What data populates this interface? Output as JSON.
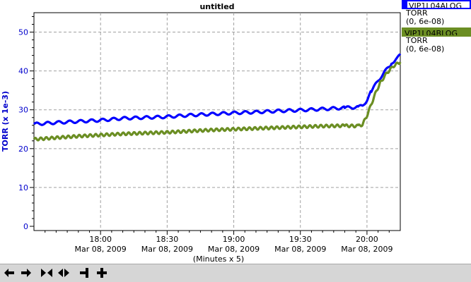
{
  "chart_data": {
    "type": "line",
    "title": "untitled",
    "ylabel": "TORR (x 1e-3)",
    "xlabel": "(Minutes x 5)",
    "ylim": [
      0,
      55
    ],
    "y_ticks": [
      0,
      10,
      20,
      30,
      40,
      50
    ],
    "x_range_minutes": [
      0,
      165
    ],
    "x_ticks": [
      {
        "minute": 30,
        "time": "18:00",
        "date": "Mar 08, 2009"
      },
      {
        "minute": 60,
        "time": "18:30",
        "date": "Mar 08, 2009"
      },
      {
        "minute": 90,
        "time": "19:00",
        "date": "Mar 08, 2009"
      },
      {
        "minute": 120,
        "time": "19:30",
        "date": "Mar 08, 2009"
      },
      {
        "minute": 150,
        "time": "20:00",
        "date": "Mar 08, 2009"
      }
    ],
    "grid": true,
    "series": [
      {
        "name": "VIP1L04ALOG",
        "units": "TORR",
        "range": "(0, 6e-08)",
        "color": "#0000ff",
        "points": [
          [
            0,
            26.3
          ],
          [
            10,
            26.7
          ],
          [
            20,
            27.0
          ],
          [
            30,
            27.3
          ],
          [
            40,
            27.8
          ],
          [
            50,
            28.0
          ],
          [
            60,
            28.2
          ],
          [
            70,
            28.6
          ],
          [
            80,
            28.9
          ],
          [
            90,
            29.2
          ],
          [
            100,
            29.4
          ],
          [
            110,
            29.7
          ],
          [
            120,
            29.9
          ],
          [
            130,
            30.2
          ],
          [
            140,
            30.5
          ],
          [
            146,
            30.7
          ],
          [
            148,
            31.0
          ],
          [
            150,
            32.5
          ],
          [
            152,
            34.8
          ],
          [
            155,
            37.5
          ],
          [
            158,
            39.8
          ],
          [
            161,
            41.8
          ],
          [
            163,
            43.2
          ],
          [
            165,
            44.0
          ]
        ]
      },
      {
        "name": "VIP1L04BLOG",
        "units": "TORR",
        "range": "(0, 6e-08)",
        "color": "#6b8e23",
        "points": [
          [
            0,
            22.4
          ],
          [
            10,
            22.8
          ],
          [
            20,
            23.2
          ],
          [
            30,
            23.5
          ],
          [
            40,
            23.8
          ],
          [
            50,
            24.0
          ],
          [
            60,
            24.2
          ],
          [
            70,
            24.5
          ],
          [
            80,
            24.8
          ],
          [
            90,
            25.0
          ],
          [
            100,
            25.2
          ],
          [
            110,
            25.4
          ],
          [
            120,
            25.6
          ],
          [
            130,
            25.8
          ],
          [
            140,
            25.9
          ],
          [
            146,
            25.8
          ],
          [
            148,
            26.2
          ],
          [
            150,
            28.5
          ],
          [
            152,
            31.5
          ],
          [
            154,
            34.5
          ],
          [
            156,
            37.0
          ],
          [
            159,
            39.5
          ],
          [
            162,
            41.3
          ],
          [
            165,
            42.3
          ]
        ]
      }
    ]
  },
  "toolbar": {
    "buttons": [
      {
        "name": "pan-left-button",
        "icon": "arrow-left-icon"
      },
      {
        "name": "pan-right-button",
        "icon": "arrow-right-icon"
      },
      {
        "name": "zoom-in-x-button",
        "icon": "arrows-inward-icon"
      },
      {
        "name": "zoom-out-x-button",
        "icon": "arrows-outward-icon"
      },
      {
        "name": "zoom-in-y-button",
        "icon": "minus-icon"
      },
      {
        "name": "zoom-out-y-button",
        "icon": "plus-icon"
      }
    ]
  }
}
